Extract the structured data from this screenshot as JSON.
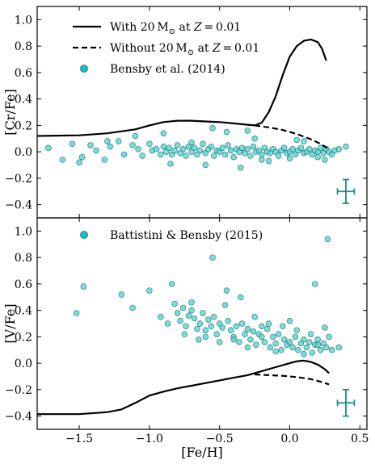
{
  "colors": {
    "point_fill": "#4fd1cf",
    "point_stroke": "#1a6f6e",
    "legend_marker_fill": "#17bfbf",
    "errorbar": "#178f8f",
    "line": "#000000"
  },
  "chart_data": {
    "type": "scatter",
    "shared_x": {
      "label": "[Fe/H]",
      "range": [
        -1.8,
        0.55
      ],
      "ticks": [
        -1.5,
        -1.0,
        -0.5,
        0.0,
        0.5
      ],
      "tick_labels": [
        "−1.5",
        "−1.0",
        "−0.5",
        "0.0",
        "0.5"
      ]
    },
    "panels": [
      {
        "ylabel": "[Cr/Fe]",
        "ylim": [
          -0.5,
          1.1
        ],
        "yticks": [
          -0.4,
          -0.2,
          0.0,
          0.2,
          0.4,
          0.6,
          0.8,
          1.0
        ],
        "ytick_labels": [
          "−0.4",
          "−0.2",
          "0.0",
          "0.2",
          "0.4",
          "0.6",
          "0.8",
          "1.0"
        ],
        "legend": [
          {
            "kind": "solid",
            "label_prefix": "With 20 M",
            "label_sun": "⊙",
            "label_suffix": " at ",
            "label_var": "Z",
            "label_val": " = 0.01"
          },
          {
            "kind": "dashed",
            "label_prefix": "Without 20 M",
            "label_sun": "⊙",
            "label_suffix": " at ",
            "label_var": "Z",
            "label_val": " = 0.01"
          },
          {
            "kind": "marker",
            "label": "Bensby et al. (2014)"
          }
        ],
        "series": [
          {
            "name": "With 20 M⊙ at Z=0.01",
            "style": "solid",
            "x": [
              -1.8,
              -1.5,
              -1.3,
              -1.1,
              -1.0,
              -0.9,
              -0.8,
              -0.7,
              -0.6,
              -0.5,
              -0.4,
              -0.3,
              -0.25,
              -0.2,
              -0.15,
              -0.1,
              -0.05,
              0.0,
              0.05,
              0.1,
              0.15,
              0.2,
              0.23,
              0.26
            ],
            "y": [
              0.12,
              0.125,
              0.14,
              0.17,
              0.2,
              0.225,
              0.235,
              0.235,
              0.23,
              0.225,
              0.215,
              0.205,
              0.2,
              0.22,
              0.3,
              0.42,
              0.58,
              0.72,
              0.8,
              0.84,
              0.85,
              0.83,
              0.78,
              0.69
            ]
          },
          {
            "name": "Without 20 M⊙ at Z=0.01",
            "style": "dashed",
            "x": [
              -0.25,
              -0.15,
              -0.05,
              0.05,
              0.15,
              0.22,
              0.28
            ],
            "y": [
              0.2,
              0.185,
              0.165,
              0.135,
              0.095,
              0.06,
              0.02
            ]
          }
        ],
        "scatter": {
          "name": "Bensby et al. (2014)",
          "x": [
            -1.72,
            -1.62,
            -1.55,
            -1.48,
            -1.42,
            -1.38,
            -1.32,
            -1.28,
            -1.22,
            -1.18,
            -1.12,
            -1.08,
            -1.05,
            -1.0,
            -0.98,
            -0.95,
            -0.92,
            -0.9,
            -0.88,
            -0.86,
            -0.84,
            -0.82,
            -0.8,
            -0.78,
            -0.76,
            -0.74,
            -0.72,
            -0.7,
            -0.68,
            -0.66,
            -0.64,
            -0.62,
            -0.6,
            -0.58,
            -0.56,
            -0.54,
            -0.52,
            -0.5,
            -0.48,
            -0.46,
            -0.44,
            -0.42,
            -0.4,
            -0.38,
            -0.36,
            -0.34,
            -0.32,
            -0.3,
            -0.28,
            -0.26,
            -0.24,
            -0.22,
            -0.2,
            -0.18,
            -0.16,
            -0.14,
            -0.12,
            -0.1,
            -0.08,
            -0.06,
            -0.04,
            -0.02,
            0.0,
            0.02,
            0.04,
            0.06,
            0.08,
            0.1,
            0.12,
            0.14,
            0.16,
            0.18,
            0.2,
            0.22,
            0.24,
            0.26,
            0.28,
            0.3,
            0.32,
            0.35,
            0.4,
            -1.5,
            -1.3,
            -0.85,
            -0.7,
            -0.55,
            -0.35,
            -0.25,
            -0.15,
            0.0,
            0.1,
            0.25,
            -1.1,
            -0.6,
            -0.45,
            -0.2,
            0.05,
            0.2,
            -0.9,
            -0.3
          ],
          "y": [
            0.03,
            -0.06,
            0.06,
            -0.04,
            0.05,
            0.01,
            -0.06,
            0.04,
            0.08,
            -0.02,
            0.05,
            0.02,
            -0.03,
            0.06,
            0.01,
            0.02,
            -0.02,
            0.04,
            0.0,
            0.03,
            -0.02,
            0.01,
            0.05,
            -0.01,
            0.02,
            -0.03,
            0.04,
            0.0,
            0.03,
            -0.02,
            0.01,
            0.06,
            -0.01,
            0.02,
            0.04,
            -0.03,
            0.01,
            0.0,
            0.03,
            -0.02,
            0.05,
            0.01,
            -0.04,
            0.02,
            0.0,
            0.03,
            -0.01,
            0.02,
            -0.03,
            0.04,
            0.0,
            0.01,
            -0.02,
            0.03,
            0.0,
            -0.01,
            0.02,
            0.0,
            -0.03,
            0.01,
            0.03,
            -0.01,
            0.0,
            0.02,
            -0.02,
            0.01,
            0.03,
            -0.01,
            0.0,
            0.02,
            -0.02,
            0.01,
            0.0,
            0.03,
            -0.01,
            0.02,
            0.0,
            -0.02,
            0.01,
            0.02,
            0.04,
            -0.08,
            0.08,
            -0.09,
            0.07,
            0.18,
            -0.12,
            0.1,
            -0.07,
            -0.05,
            0.08,
            -0.06,
            0.12,
            -0.1,
            0.15,
            -0.06,
            0.09,
            -0.04,
            0.14,
            0.16
          ],
          "errorbar": {
            "x": 0.4,
            "y": -0.3,
            "xerr": 0.06,
            "yerr": 0.09
          }
        }
      },
      {
        "ylabel": "[V/Fe]",
        "ylim": [
          -0.5,
          1.1
        ],
        "yticks": [
          -0.4,
          -0.2,
          0.0,
          0.2,
          0.4,
          0.6,
          0.8,
          1.0
        ],
        "ytick_labels": [
          "−0.4",
          "−0.2",
          "0.0",
          "0.2",
          "0.4",
          "0.6",
          "0.8",
          "1.0"
        ],
        "legend": [
          {
            "kind": "marker",
            "label": "Battistini & Bensby (2015)"
          }
        ],
        "series": [
          {
            "name": "With 20 M⊙ at Z=0.01",
            "style": "solid",
            "x": [
              -1.8,
              -1.5,
              -1.3,
              -1.2,
              -1.1,
              -1.0,
              -0.9,
              -0.8,
              -0.7,
              -0.6,
              -0.5,
              -0.4,
              -0.3,
              -0.2,
              -0.1,
              0.0,
              0.05,
              0.1,
              0.15,
              0.2,
              0.25,
              0.28
            ],
            "y": [
              -0.385,
              -0.385,
              -0.37,
              -0.35,
              -0.3,
              -0.245,
              -0.215,
              -0.19,
              -0.17,
              -0.15,
              -0.13,
              -0.11,
              -0.09,
              -0.06,
              -0.03,
              0.0,
              0.015,
              0.02,
              0.01,
              -0.01,
              -0.045,
              -0.075
            ]
          },
          {
            "name": "Without 20 M⊙ at Z=0.01",
            "style": "dashed",
            "x": [
              -0.25,
              -0.15,
              -0.05,
              0.05,
              0.15,
              0.22,
              0.28
            ],
            "y": [
              -0.085,
              -0.09,
              -0.095,
              -0.105,
              -0.12,
              -0.14,
              -0.16
            ]
          }
        ],
        "scatter": {
          "name": "Battistini & Bensby (2015)",
          "x": [
            -1.52,
            -1.47,
            -1.2,
            -1.12,
            -1.0,
            -0.92,
            -0.87,
            -0.84,
            -0.82,
            -0.8,
            -0.78,
            -0.76,
            -0.74,
            -0.72,
            -0.7,
            -0.68,
            -0.66,
            -0.64,
            -0.62,
            -0.6,
            -0.58,
            -0.56,
            -0.54,
            -0.52,
            -0.5,
            -0.48,
            -0.46,
            -0.44,
            -0.42,
            -0.4,
            -0.38,
            -0.36,
            -0.34,
            -0.32,
            -0.3,
            -0.28,
            -0.26,
            -0.24,
            -0.22,
            -0.2,
            -0.18,
            -0.16,
            -0.14,
            -0.12,
            -0.1,
            -0.08,
            -0.06,
            -0.04,
            -0.02,
            0.0,
            0.02,
            0.04,
            0.06,
            0.08,
            0.1,
            0.12,
            0.14,
            0.16,
            0.18,
            0.2,
            0.22,
            0.24,
            0.26,
            0.28,
            0.3,
            0.35,
            -0.55,
            -0.45,
            -0.35,
            -0.25,
            -0.15,
            -0.05,
            0.05,
            0.15,
            0.25,
            -0.65,
            -0.75,
            -0.5,
            -0.3,
            -0.1,
            0.1,
            0.18,
            0.27,
            -0.4,
            -0.2,
            0.0,
            0.2,
            -0.6,
            -0.7
          ],
          "y": [
            0.38,
            0.58,
            0.52,
            0.42,
            0.55,
            0.35,
            0.3,
            0.6,
            0.45,
            0.38,
            0.32,
            0.42,
            0.28,
            0.36,
            0.4,
            0.34,
            0.26,
            0.3,
            0.38,
            0.25,
            0.33,
            0.28,
            0.35,
            0.22,
            0.3,
            0.27,
            0.44,
            0.32,
            0.25,
            0.2,
            0.28,
            0.16,
            0.3,
            0.22,
            0.26,
            0.18,
            0.24,
            0.14,
            0.22,
            0.2,
            0.16,
            0.26,
            0.12,
            0.2,
            0.15,
            0.22,
            0.1,
            0.18,
            0.14,
            0.16,
            0.12,
            0.2,
            0.1,
            0.15,
            0.18,
            0.12,
            0.16,
            0.08,
            0.14,
            0.18,
            0.1,
            0.15,
            0.12,
            0.2,
            0.1,
            0.12,
            0.8,
            0.55,
            0.5,
            0.35,
            0.3,
            0.28,
            0.25,
            0.22,
            0.27,
            0.18,
            0.22,
            0.16,
            0.12,
            0.09,
            0.07,
            0.6,
            0.94,
            0.18,
            0.28,
            0.32,
            0.14,
            0.2,
            0.46
          ],
          "errorbar": {
            "x": 0.4,
            "y": -0.3,
            "xerr": 0.06,
            "yerr": 0.1
          }
        }
      }
    ]
  }
}
